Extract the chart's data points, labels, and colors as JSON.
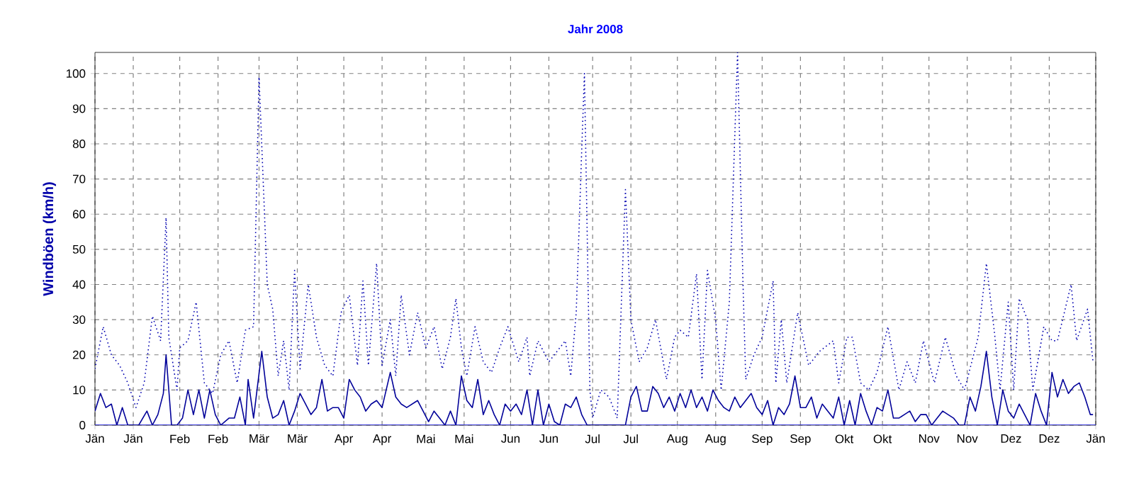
{
  "chart_data": {
    "type": "line",
    "title": "Jahr 2008",
    "ylabel": "Windböen (km/h)",
    "grid": true,
    "marker": "none",
    "xlim": [
      "2008-01-01",
      "2009-01-01"
    ],
    "ylim": [
      0,
      106
    ],
    "yticks": [
      0,
      10,
      20,
      30,
      40,
      50,
      60,
      70,
      80,
      90,
      100
    ],
    "xticks": [
      {
        "value": "2008-01-01",
        "label": "Jän"
      },
      {
        "value": "2008-01-15",
        "label": "Jän"
      },
      {
        "value": "2008-02-01",
        "label": "Feb"
      },
      {
        "value": "2008-02-15",
        "label": "Feb"
      },
      {
        "value": "2008-03-01",
        "label": "Mär"
      },
      {
        "value": "2008-03-15",
        "label": "Mär"
      },
      {
        "value": "2008-04-01",
        "label": "Apr"
      },
      {
        "value": "2008-04-15",
        "label": "Apr"
      },
      {
        "value": "2008-05-01",
        "label": "Mai"
      },
      {
        "value": "2008-05-15",
        "label": "Mai"
      },
      {
        "value": "2008-06-01",
        "label": "Jun"
      },
      {
        "value": "2008-06-15",
        "label": "Jun"
      },
      {
        "value": "2008-07-01",
        "label": "Jul"
      },
      {
        "value": "2008-07-15",
        "label": "Jul"
      },
      {
        "value": "2008-08-01",
        "label": "Aug"
      },
      {
        "value": "2008-08-15",
        "label": "Aug"
      },
      {
        "value": "2008-09-01",
        "label": "Sep"
      },
      {
        "value": "2008-09-15",
        "label": "Sep"
      },
      {
        "value": "2008-10-01",
        "label": "Okt"
      },
      {
        "value": "2008-10-15",
        "label": "Okt"
      },
      {
        "value": "2008-11-01",
        "label": "Nov"
      },
      {
        "value": "2008-11-15",
        "label": "Nov"
      },
      {
        "value": "2008-12-01",
        "label": "Dez"
      },
      {
        "value": "2008-12-15",
        "label": "Dez"
      },
      {
        "value": "2009-01-01",
        "label": "Jän"
      }
    ],
    "series": [
      {
        "color": "#0000b0",
        "line_style": "dotted",
        "x": [
          "2008-01-01",
          "2008-01-04",
          "2008-01-07",
          "2008-01-10",
          "2008-01-13",
          "2008-01-16",
          "2008-01-19",
          "2008-01-22",
          "2008-01-25",
          "2008-01-27",
          "2008-01-28",
          "2008-01-31",
          "2008-02-01",
          "2008-02-04",
          "2008-02-07",
          "2008-02-10",
          "2008-02-13",
          "2008-02-16",
          "2008-02-19",
          "2008-02-22",
          "2008-02-25",
          "2008-02-28",
          "2008-03-01",
          "2008-03-03",
          "2008-03-04",
          "2008-03-06",
          "2008-03-08",
          "2008-03-10",
          "2008-03-12",
          "2008-03-14",
          "2008-03-16",
          "2008-03-19",
          "2008-03-22",
          "2008-03-25",
          "2008-03-28",
          "2008-03-31",
          "2008-04-03",
          "2008-04-06",
          "2008-04-08",
          "2008-04-10",
          "2008-04-13",
          "2008-04-15",
          "2008-04-18",
          "2008-04-20",
          "2008-04-22",
          "2008-04-25",
          "2008-04-28",
          "2008-05-01",
          "2008-05-04",
          "2008-05-07",
          "2008-05-10",
          "2008-05-12",
          "2008-05-14",
          "2008-05-16",
          "2008-05-19",
          "2008-05-22",
          "2008-05-25",
          "2008-05-28",
          "2008-05-31",
          "2008-06-04",
          "2008-06-07",
          "2008-06-08",
          "2008-06-11",
          "2008-06-15",
          "2008-06-18",
          "2008-06-21",
          "2008-06-23",
          "2008-06-25",
          "2008-06-27",
          "2008-06-28",
          "2008-06-30",
          "2008-07-01",
          "2008-07-04",
          "2008-07-07",
          "2008-07-10",
          "2008-07-13",
          "2008-07-15",
          "2008-07-18",
          "2008-07-21",
          "2008-07-24",
          "2008-07-28",
          "2008-07-31",
          "2008-08-02",
          "2008-08-05",
          "2008-08-08",
          "2008-08-10",
          "2008-08-12",
          "2008-08-15",
          "2008-08-17",
          "2008-08-20",
          "2008-08-23",
          "2008-08-25",
          "2008-08-26",
          "2008-08-29",
          "2008-09-01",
          "2008-09-05",
          "2008-09-06",
          "2008-09-08",
          "2008-09-10",
          "2008-09-14",
          "2008-09-18",
          "2008-09-22",
          "2008-09-27",
          "2008-09-29",
          "2008-10-02",
          "2008-10-04",
          "2008-10-07",
          "2008-10-10",
          "2008-10-13",
          "2008-10-17",
          "2008-10-21",
          "2008-10-24",
          "2008-10-27",
          "2008-10-30",
          "2008-11-03",
          "2008-11-07",
          "2008-11-11",
          "2008-11-14",
          "2008-11-19",
          "2008-11-22",
          "2008-11-25",
          "2008-11-27",
          "2008-11-30",
          "2008-12-02",
          "2008-12-04",
          "2008-12-07",
          "2008-12-09",
          "2008-12-13",
          "2008-12-16",
          "2008-12-18",
          "2008-12-23",
          "2008-12-25",
          "2008-12-29",
          "2008-12-31"
        ],
        "values": [
          16,
          28,
          20,
          17,
          12,
          5,
          12,
          31,
          24,
          59,
          25,
          10,
          22,
          24,
          35,
          12,
          9,
          20,
          24,
          12,
          27,
          28,
          99,
          60,
          40,
          33,
          14,
          24,
          10,
          44,
          16,
          40,
          25,
          17,
          14,
          32,
          37,
          17,
          41,
          17,
          46,
          17,
          30,
          14,
          37,
          20,
          32,
          22,
          28,
          16,
          25,
          36,
          22,
          14,
          28,
          18,
          15,
          22,
          28,
          18,
          25,
          14,
          24,
          18,
          21,
          24,
          14,
          32,
          78,
          100,
          10,
          2,
          10,
          8,
          2,
          67,
          30,
          18,
          22,
          30,
          13,
          25,
          27,
          25,
          43,
          13,
          44,
          30,
          10,
          35,
          106,
          40,
          13,
          20,
          25,
          41,
          12,
          30,
          12,
          32,
          17,
          21,
          24,
          12,
          25,
          25,
          12,
          10,
          15,
          28,
          10,
          18,
          12,
          24,
          12,
          25,
          14,
          10,
          25,
          46,
          26,
          10,
          35,
          10,
          36,
          30,
          10,
          28,
          24,
          24,
          40,
          24,
          33,
          18
        ]
      },
      {
        "color": "#000099",
        "line_style": "solid",
        "x": [
          "2008-01-01",
          "2008-01-03",
          "2008-01-05",
          "2008-01-07",
          "2008-01-09",
          "2008-01-11",
          "2008-01-13",
          "2008-01-17",
          "2008-01-20",
          "2008-01-22",
          "2008-01-24",
          "2008-01-26",
          "2008-01-27",
          "2008-01-29",
          "2008-01-31",
          "2008-02-02",
          "2008-02-04",
          "2008-02-06",
          "2008-02-08",
          "2008-02-10",
          "2008-02-12",
          "2008-02-14",
          "2008-02-16",
          "2008-02-19",
          "2008-02-21",
          "2008-02-23",
          "2008-02-25",
          "2008-02-26",
          "2008-02-28",
          "2008-03-02",
          "2008-03-04",
          "2008-03-06",
          "2008-03-08",
          "2008-03-10",
          "2008-03-12",
          "2008-03-14",
          "2008-03-16",
          "2008-03-18",
          "2008-03-20",
          "2008-03-22",
          "2008-03-24",
          "2008-03-26",
          "2008-03-28",
          "2008-03-30",
          "2008-04-01",
          "2008-04-03",
          "2008-04-05",
          "2008-04-07",
          "2008-04-09",
          "2008-04-11",
          "2008-04-13",
          "2008-04-15",
          "2008-04-18",
          "2008-04-20",
          "2008-04-22",
          "2008-04-24",
          "2008-04-26",
          "2008-04-28",
          "2008-04-30",
          "2008-05-02",
          "2008-05-04",
          "2008-05-06",
          "2008-05-08",
          "2008-05-10",
          "2008-05-12",
          "2008-05-14",
          "2008-05-16",
          "2008-05-18",
          "2008-05-20",
          "2008-05-22",
          "2008-05-24",
          "2008-05-26",
          "2008-05-28",
          "2008-05-30",
          "2008-06-01",
          "2008-06-03",
          "2008-06-05",
          "2008-06-07",
          "2008-06-09",
          "2008-06-11",
          "2008-06-13",
          "2008-06-15",
          "2008-06-17",
          "2008-06-19",
          "2008-06-21",
          "2008-06-23",
          "2008-06-25",
          "2008-06-27",
          "2008-06-29",
          "2008-07-01",
          "2008-07-04",
          "2008-07-07",
          "2008-07-10",
          "2008-07-13",
          "2008-07-15",
          "2008-07-17",
          "2008-07-19",
          "2008-07-21",
          "2008-07-23",
          "2008-07-25",
          "2008-07-27",
          "2008-07-29",
          "2008-07-31",
          "2008-08-02",
          "2008-08-04",
          "2008-08-06",
          "2008-08-08",
          "2008-08-10",
          "2008-08-12",
          "2008-08-14",
          "2008-08-16",
          "2008-08-18",
          "2008-08-20",
          "2008-08-22",
          "2008-08-24",
          "2008-08-26",
          "2008-08-28",
          "2008-08-30",
          "2008-09-01",
          "2008-09-03",
          "2008-09-05",
          "2008-09-07",
          "2008-09-09",
          "2008-09-11",
          "2008-09-13",
          "2008-09-15",
          "2008-09-17",
          "2008-09-19",
          "2008-09-21",
          "2008-09-23",
          "2008-09-25",
          "2008-09-27",
          "2008-09-29",
          "2008-10-01",
          "2008-10-03",
          "2008-10-05",
          "2008-10-07",
          "2008-10-09",
          "2008-10-11",
          "2008-10-13",
          "2008-10-15",
          "2008-10-17",
          "2008-10-19",
          "2008-10-21",
          "2008-10-23",
          "2008-10-25",
          "2008-10-27",
          "2008-10-29",
          "2008-10-31",
          "2008-11-02",
          "2008-11-04",
          "2008-11-06",
          "2008-11-08",
          "2008-11-10",
          "2008-11-12",
          "2008-11-14",
          "2008-11-16",
          "2008-11-18",
          "2008-11-20",
          "2008-11-22",
          "2008-11-24",
          "2008-11-26",
          "2008-11-28",
          "2008-11-30",
          "2008-12-02",
          "2008-12-04",
          "2008-12-06",
          "2008-12-08",
          "2008-12-10",
          "2008-12-12",
          "2008-12-14",
          "2008-12-16",
          "2008-12-18",
          "2008-12-20",
          "2008-12-22",
          "2008-12-24",
          "2008-12-26",
          "2008-12-28",
          "2008-12-30",
          "2008-12-31"
        ],
        "values": [
          4,
          9,
          5,
          6,
          0,
          5,
          0,
          0,
          4,
          0,
          3,
          9,
          20,
          0,
          0,
          2,
          10,
          3,
          10,
          2,
          10,
          3,
          0,
          2,
          2,
          8,
          0,
          13,
          2,
          21,
          8,
          2,
          3,
          7,
          0,
          4,
          9,
          6,
          3,
          5,
          13,
          4,
          5,
          5,
          2,
          13,
          10,
          8,
          4,
          6,
          7,
          5,
          15,
          8,
          6,
          5,
          6,
          7,
          4,
          1,
          4,
          2,
          0,
          4,
          0,
          14,
          7,
          5,
          13,
          3,
          7,
          3,
          0,
          6,
          4,
          6,
          3,
          10,
          0,
          10,
          0,
          6,
          1,
          0,
          6,
          5,
          8,
          3,
          0,
          0,
          0,
          0,
          0,
          0,
          8,
          11,
          4,
          4,
          11,
          9,
          5,
          8,
          4,
          9,
          5,
          10,
          5,
          8,
          4,
          10,
          7,
          5,
          4,
          8,
          5,
          7,
          9,
          5,
          3,
          7,
          0,
          5,
          3,
          6,
          14,
          5,
          5,
          8,
          2,
          6,
          4,
          2,
          8,
          0,
          7,
          0,
          9,
          4,
          0,
          5,
          4,
          10,
          2,
          2,
          3,
          4,
          1,
          3,
          3,
          0,
          2,
          4,
          3,
          2,
          0,
          0,
          8,
          4,
          11,
          21,
          8,
          0,
          10,
          4,
          2,
          6,
          3,
          0,
          9,
          4,
          0,
          15,
          8,
          13,
          9,
          11,
          12,
          8,
          3,
          3
        ]
      },
      {
        "color": "#3333ff",
        "line_style": "solid",
        "x": [
          "2008-01-01",
          "2009-01-01"
        ],
        "values": [
          0,
          0
        ]
      }
    ]
  }
}
